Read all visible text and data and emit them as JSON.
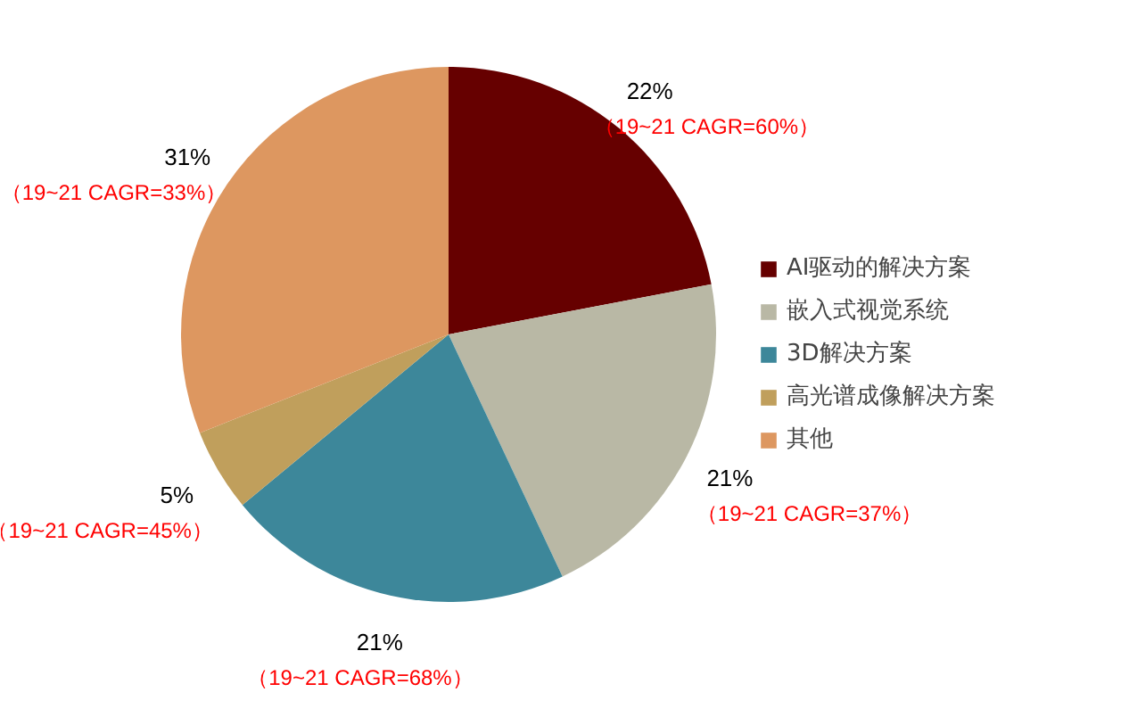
{
  "chart_data": {
    "type": "pie",
    "categories": [
      "AI驱动的解决方案",
      "嵌入式视觉系统",
      "3D解决方案",
      "高光谱成像解决方案",
      "其他"
    ],
    "values": [
      22,
      21,
      21,
      5,
      31
    ],
    "colors": [
      "#660000",
      "#b9b8a5",
      "#3d879a",
      "#c09f5c",
      "#dd9760"
    ],
    "value_labels": [
      "22%",
      "21%",
      "21%",
      "5%",
      "31%"
    ],
    "annotations": [
      "（19~21 CAGR=60%）",
      "（19~21 CAGR=37%）",
      "（19~21 CAGR=68%）",
      "（19~21 CAGR=45%）",
      "（19~21 CAGR=33%）"
    ],
    "legend": "right"
  }
}
